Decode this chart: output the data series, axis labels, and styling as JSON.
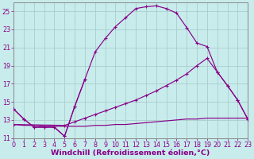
{
  "bg_color": "#c8ecec",
  "line_color": "#880088",
  "grid_color": "#aacccc",
  "xlabel": "Windchill (Refroidissement éolien,°C)",
  "xlabel_fontsize": 6.8,
  "tick_fontsize": 5.8,
  "xlim": [
    0,
    23
  ],
  "ylim": [
    11,
    26
  ],
  "yticks": [
    11,
    13,
    15,
    17,
    19,
    21,
    23,
    25
  ],
  "xticks": [
    0,
    1,
    2,
    3,
    4,
    5,
    6,
    7,
    8,
    9,
    10,
    11,
    12,
    13,
    14,
    15,
    16,
    17,
    18,
    19,
    20,
    21,
    22,
    23
  ],
  "curve_bell_x": [
    0,
    1,
    2,
    3,
    4,
    5,
    6,
    7,
    8,
    9,
    10,
    11,
    12,
    13,
    14,
    15,
    16,
    17,
    18,
    19,
    20,
    21,
    22,
    23
  ],
  "curve_bell_y": [
    14.2,
    13.1,
    12.2,
    12.2,
    12.2,
    11.2,
    14.5,
    17.5,
    20.5,
    22.0,
    23.3,
    24.3,
    25.3,
    25.5,
    25.6,
    25.3,
    24.8,
    23.2,
    21.5,
    21.1,
    18.3,
    16.8,
    15.2,
    13.1
  ],
  "curve_vshape_x": [
    0,
    1,
    2,
    3,
    4,
    5,
    6,
    7
  ],
  "curve_vshape_y": [
    14.2,
    13.1,
    12.2,
    12.2,
    12.2,
    11.2,
    14.5,
    17.5
  ],
  "curve_diag1_x": [
    0,
    5,
    6,
    7,
    8,
    9,
    10,
    11,
    12,
    13,
    14,
    15,
    16,
    17,
    18,
    19,
    20,
    21,
    22,
    23
  ],
  "curve_diag1_y": [
    12.5,
    12.4,
    12.8,
    13.2,
    13.6,
    14.0,
    14.4,
    14.8,
    15.2,
    15.7,
    16.2,
    16.8,
    17.4,
    18.1,
    19.0,
    19.8,
    18.3,
    16.8,
    15.2,
    13.1
  ],
  "curve_flat_x": [
    0,
    1,
    2,
    3,
    4,
    5,
    6,
    7,
    8,
    9,
    10,
    11,
    12,
    13,
    14,
    15,
    16,
    17,
    18,
    19,
    20,
    21,
    22,
    23
  ],
  "curve_flat_y": [
    12.5,
    12.4,
    12.4,
    12.3,
    12.3,
    12.3,
    12.3,
    12.3,
    12.4,
    12.4,
    12.5,
    12.5,
    12.6,
    12.7,
    12.8,
    12.9,
    13.0,
    13.1,
    13.1,
    13.2,
    13.2,
    13.2,
    13.2,
    13.2
  ]
}
